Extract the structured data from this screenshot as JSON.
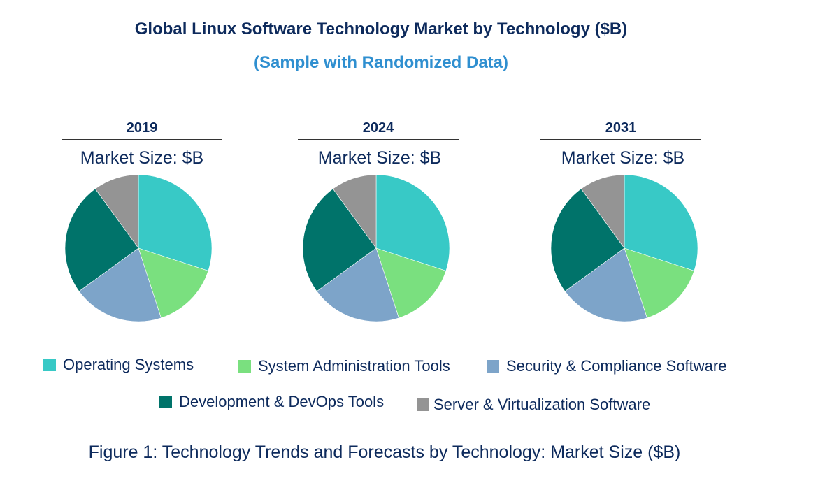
{
  "header": {
    "title": "Global Linux Software Technology Market by Technology ($B)",
    "subtitle": "(Sample with Randomized Data)"
  },
  "charts": [
    {
      "year": "2019",
      "market_size_label": "Market Size: $B"
    },
    {
      "year": "2024",
      "market_size_label": "Market Size: $B"
    },
    {
      "year": "2031",
      "market_size_label": "Market Size: $B"
    }
  ],
  "legend": [
    {
      "label": "Operating Systems",
      "color": "#38c9c6"
    },
    {
      "label": "System Administration Tools",
      "color": "#7ae07f"
    },
    {
      "label": "Security & Compliance Software",
      "color": "#7da4c9"
    },
    {
      "label": "Development & DevOps Tools",
      "color": "#00736a"
    },
    {
      "label": "Server & Virtualization Software",
      "color": "#949494"
    }
  ],
  "caption": "Figure 1: Technology Trends and Forecasts by Technology: Market Size ($B)",
  "chart_data": [
    {
      "type": "pie",
      "title": "2019",
      "categories": [
        "Operating Systems",
        "System Administration Tools",
        "Security & Compliance Software",
        "Development & DevOps Tools",
        "Server & Virtualization Software"
      ],
      "values": [
        30,
        15,
        20,
        25,
        10
      ],
      "colors": [
        "#38c9c6",
        "#7ae07f",
        "#7da4c9",
        "#00736a",
        "#949494"
      ]
    },
    {
      "type": "pie",
      "title": "2024",
      "categories": [
        "Operating Systems",
        "System Administration Tools",
        "Security & Compliance Software",
        "Development & DevOps Tools",
        "Server & Virtualization Software"
      ],
      "values": [
        30,
        15,
        20,
        25,
        10
      ],
      "colors": [
        "#38c9c6",
        "#7ae07f",
        "#7da4c9",
        "#00736a",
        "#949494"
      ]
    },
    {
      "type": "pie",
      "title": "2031",
      "categories": [
        "Operating Systems",
        "System Administration Tools",
        "Security & Compliance Software",
        "Development & DevOps Tools",
        "Server & Virtualization Software"
      ],
      "values": [
        30,
        15,
        20,
        25,
        10
      ],
      "colors": [
        "#38c9c6",
        "#7ae07f",
        "#7da4c9",
        "#00736a",
        "#949494"
      ]
    }
  ]
}
